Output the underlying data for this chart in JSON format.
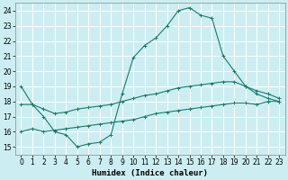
{
  "xlabel": "Humidex (Indice chaleur)",
  "bg_color": "#cceef2",
  "grid_color": "#ffffff",
  "line_color": "#1a7a6a",
  "xlim": [
    -0.5,
    23.5
  ],
  "ylim": [
    14.5,
    24.5
  ],
  "xticks": [
    0,
    1,
    2,
    3,
    4,
    5,
    6,
    7,
    8,
    9,
    10,
    11,
    12,
    13,
    14,
    15,
    16,
    17,
    18,
    19,
    20,
    21,
    22,
    23
  ],
  "yticks": [
    15,
    16,
    17,
    18,
    19,
    20,
    21,
    22,
    23,
    24
  ],
  "line1_x": [
    0,
    1,
    2,
    3,
    4,
    5,
    6,
    7,
    8,
    9,
    10,
    11,
    12,
    13,
    14,
    15,
    16,
    17,
    18,
    19,
    20,
    21,
    22,
    23
  ],
  "line1_y": [
    19,
    17.8,
    17.0,
    16.0,
    15.8,
    15.0,
    15.2,
    15.3,
    15.8,
    18.5,
    20.9,
    21.7,
    22.2,
    23.0,
    24.0,
    24.2,
    23.7,
    23.5,
    21.0,
    20.0,
    19.0,
    18.5,
    18.2,
    18.0
  ],
  "line2_x": [
    0,
    1,
    2,
    3,
    4,
    5,
    6,
    7,
    8,
    9,
    10,
    11,
    12,
    13,
    14,
    15,
    16,
    17,
    18,
    19,
    20,
    21,
    22,
    23
  ],
  "line2_y": [
    17.8,
    17.8,
    17.5,
    17.2,
    17.3,
    17.5,
    17.6,
    17.7,
    17.8,
    18.0,
    18.2,
    18.4,
    18.5,
    18.7,
    18.9,
    19.0,
    19.1,
    19.2,
    19.3,
    19.3,
    19.0,
    18.7,
    18.5,
    18.2
  ],
  "line3_x": [
    0,
    1,
    2,
    3,
    4,
    5,
    6,
    7,
    8,
    9,
    10,
    11,
    12,
    13,
    14,
    15,
    16,
    17,
    18,
    19,
    20,
    21,
    22,
    23
  ],
  "line3_y": [
    16.0,
    16.2,
    16.0,
    16.1,
    16.2,
    16.3,
    16.4,
    16.5,
    16.6,
    16.7,
    16.8,
    17.0,
    17.2,
    17.3,
    17.4,
    17.5,
    17.6,
    17.7,
    17.8,
    17.9,
    17.9,
    17.8,
    18.0,
    18.0
  ],
  "figsize": [
    3.2,
    2.0
  ],
  "dpi": 100,
  "tick_fontsize": 5.5,
  "xlabel_fontsize": 6.5
}
